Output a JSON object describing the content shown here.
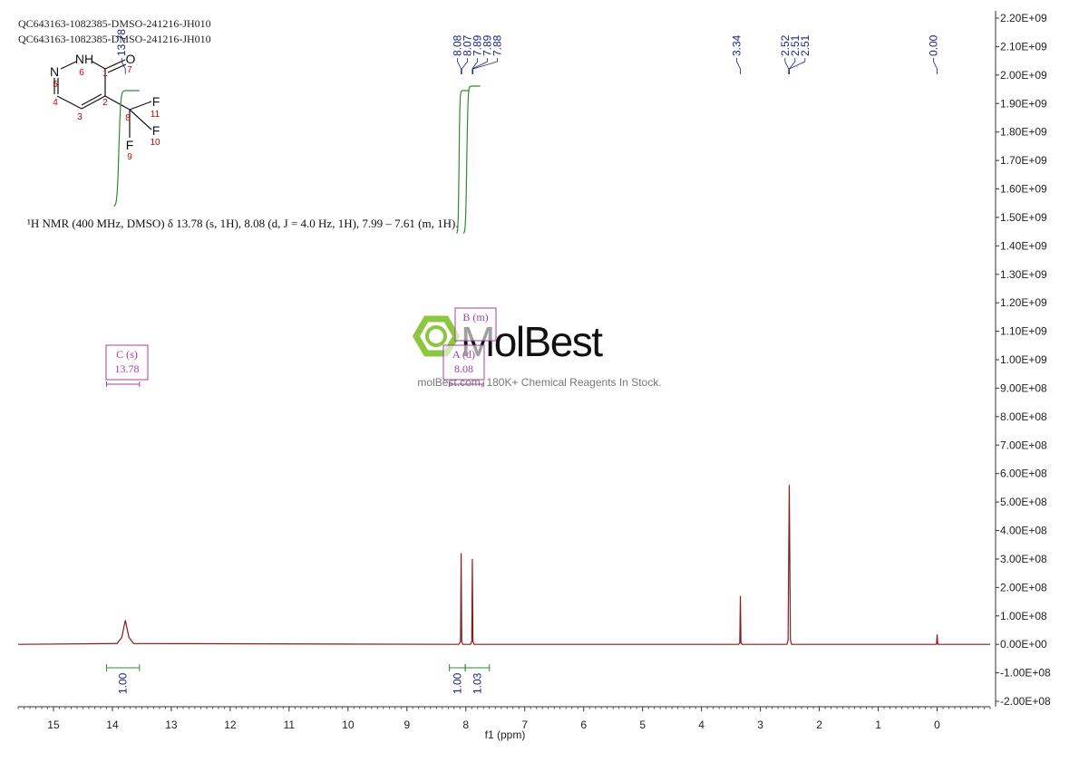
{
  "chart_data": {
    "type": "line",
    "headers": [
      "QC643163-1082385-DMSO-241216-JH010",
      "QC643163-1082385-DMSO-241216-JH010"
    ],
    "annotation": "¹H NMR (400 MHz, DMSO) δ 13.78 (s, 1H), 8.08 (d, J = 4.0 Hz, 1H), 7.99 – 7.61 (m, 1H).",
    "x_label": "f1 (ppm)",
    "x": [
      15.6,
      13.92,
      13.84,
      13.78,
      13.72,
      13.64,
      8.12,
      8.09,
      8.08,
      8.07,
      8.05,
      7.92,
      7.9,
      7.89,
      7.88,
      7.86,
      3.37,
      3.35,
      3.34,
      3.33,
      3.31,
      2.55,
      2.53,
      2.51,
      2.49,
      2.47,
      0.03,
      0.01,
      0,
      -0.01,
      -0.03,
      -0.9
    ],
    "values": [
      0,
      3000000,
      25000000,
      85000000,
      25000000,
      3000000,
      0,
      10000000,
      320000000,
      10000000,
      0,
      0,
      10000000,
      300000000,
      10000000,
      0,
      0,
      5000000,
      170000000,
      5000000,
      0,
      0,
      15000000,
      560000000,
      15000000,
      0,
      0,
      1000000,
      35000000,
      1000000,
      0,
      0
    ],
    "color": "#8b1a1a",
    "xlim": [
      15.6,
      -0.9
    ],
    "xticks": [
      15,
      14,
      13,
      12,
      11,
      10,
      9,
      8,
      7,
      6,
      5,
      4,
      3,
      2,
      1,
      0
    ],
    "ylim": [
      -200000000,
      2200000000
    ],
    "yticks": [
      {
        "value": -200000000,
        "label": "-2.00E+08"
      },
      {
        "value": -100000000,
        "label": "-1.00E+08"
      },
      {
        "value": 0,
        "label": "0.00E+00"
      },
      {
        "value": 100000000,
        "label": "1.00E+08"
      },
      {
        "value": 200000000,
        "label": "2.00E+08"
      },
      {
        "value": 300000000,
        "label": "3.00E+08"
      },
      {
        "value": 400000000,
        "label": "4.00E+08"
      },
      {
        "value": 500000000,
        "label": "5.00E+08"
      },
      {
        "value": 600000000,
        "label": "6.00E+08"
      },
      {
        "value": 700000000,
        "label": "7.00E+08"
      },
      {
        "value": 800000000,
        "label": "8.00E+08"
      },
      {
        "value": 900000000,
        "label": "9.00E+08"
      },
      {
        "value": 1000000000,
        "label": "1.00E+09"
      },
      {
        "value": 1100000000,
        "label": "1.10E+09"
      },
      {
        "value": 1200000000,
        "label": "1.20E+09"
      },
      {
        "value": 1300000000,
        "label": "1.30E+09"
      },
      {
        "value": 1400000000,
        "label": "1.40E+09"
      },
      {
        "value": 1500000000,
        "label": "1.50E+09"
      },
      {
        "value": 1600000000,
        "label": "1.60E+09"
      },
      {
        "value": 1700000000,
        "label": "1.70E+09"
      },
      {
        "value": 1800000000,
        "label": "1.80E+09"
      },
      {
        "value": 1900000000,
        "label": "1.90E+09"
      },
      {
        "value": 2000000000,
        "label": "2.00E+09"
      },
      {
        "value": 2100000000,
        "label": "2.10E+09"
      },
      {
        "value": 2200000000,
        "label": "2.20E+09"
      }
    ],
    "peak_labels": [
      13.78,
      8.08,
      8.07,
      7.89,
      7.89,
      7.88,
      3.34,
      2.52,
      2.51,
      2.51,
      {
        "value": 0,
        "label": "0.00"
      }
    ],
    "integrals": {
      "ranges": [
        [
          14.1,
          13.54
        ],
        [
          8.28,
          8.01
        ],
        [
          8.01,
          7.6
        ]
      ],
      "values": [
        1,
        1,
        1.03
      ],
      "value_labels": [
        "1.00",
        "1.00",
        "1.03"
      ]
    },
    "multiplets": [
      {
        "label": "C (s)",
        "shift": 13.78,
        "range": [
          14.1,
          13.54
        ]
      },
      {
        "label": "A (d)",
        "shift": 8.08,
        "range": [
          8.28,
          7.7
        ]
      },
      {
        "label": "B (m)"
      }
    ],
    "watermark": {
      "brand": "MolBest",
      "tagline": "molBest.com, 180K+ Chemical Reagents In Stock."
    },
    "structure": {
      "atoms": [
        "N",
        "NH",
        "O",
        "F",
        "F",
        "F"
      ],
      "numbers": [
        "6",
        "1",
        "7",
        "5",
        "4",
        "3",
        "2",
        "8",
        "11",
        "10",
        "9"
      ]
    }
  }
}
